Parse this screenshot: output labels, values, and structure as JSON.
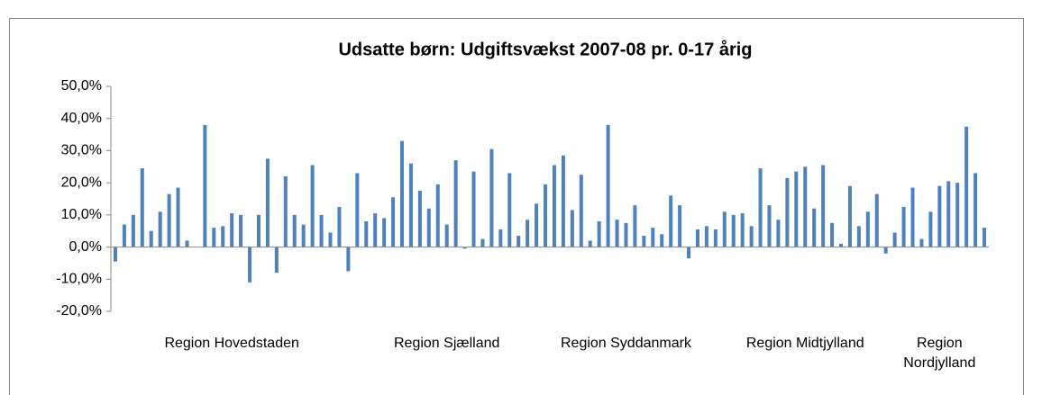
{
  "chart_data": {
    "type": "bar",
    "title": "Udsatte børn: Udgiftsvækst 2007-08 pr. 0-17 årig",
    "color": "#4f81bd",
    "categories": [
      null,
      null,
      null,
      null,
      null,
      null,
      null,
      null,
      null,
      null,
      null,
      null,
      null,
      "Region Hovedstaden",
      null,
      null,
      null,
      null,
      null,
      null,
      null,
      null,
      null,
      null,
      null,
      null,
      null,
      null,
      null,
      null,
      null,
      null,
      null,
      null,
      null,
      null,
      null,
      "Region Sjælland",
      null,
      null,
      null,
      null,
      null,
      null,
      null,
      null,
      null,
      null,
      null,
      null,
      null,
      null,
      null,
      null,
      null,
      null,
      null,
      "Region Syddanmark",
      null,
      null,
      null,
      null,
      null,
      null,
      null,
      null,
      null,
      null,
      null,
      null,
      null,
      null,
      null,
      null,
      null,
      null,
      null,
      "Region Midtjylland",
      null,
      null,
      null,
      null,
      null,
      null,
      null,
      null,
      null,
      null,
      null,
      null,
      null,
      null,
      "Region Nordjylland",
      null,
      null,
      null,
      null,
      null
    ],
    "values": [
      -4.5,
      7,
      10,
      24.5,
      5,
      11,
      16.5,
      18.5,
      2,
      null,
      38,
      6,
      6.5,
      10.5,
      10,
      -11,
      10,
      27.5,
      -8,
      22,
      10,
      7,
      25.5,
      10,
      4.5,
      12.5,
      -7.5,
      23,
      8,
      10.5,
      9,
      15.5,
      33,
      26,
      17.5,
      12,
      19.5,
      7,
      27,
      -0.5,
      23.5,
      2.5,
      30.5,
      5.5,
      23,
      3.5,
      8.5,
      13.5,
      19.5,
      25.5,
      28.5,
      11.5,
      22.5,
      2,
      8,
      38,
      8.5,
      7.5,
      13,
      3.5,
      6,
      4,
      16,
      13,
      -3.5,
      5.5,
      6.5,
      5.5,
      11,
      10,
      10.5,
      6.5,
      24.5,
      13,
      8.5,
      21.5,
      23.5,
      25,
      12,
      25.5,
      7.5,
      1,
      19,
      6.5,
      11,
      16.5,
      -2,
      4.5,
      12.5,
      18.5,
      2.5,
      11,
      19,
      20.5,
      20,
      37.5,
      23,
      6
    ],
    "ylim": [
      -20,
      50
    ],
    "yticks": [
      {
        "value": -20,
        "label": "-20,0%"
      },
      {
        "value": -10,
        "label": "-10,0%"
      },
      {
        "value": 0,
        "label": "0,0%"
      },
      {
        "value": 10,
        "label": "10,0%"
      },
      {
        "value": 20,
        "label": "20,0%"
      },
      {
        "value": 30,
        "label": "30,0%"
      },
      {
        "value": 40,
        "label": "40,0%"
      },
      {
        "value": 50,
        "label": "50,0%"
      }
    ],
    "grid": false
  }
}
